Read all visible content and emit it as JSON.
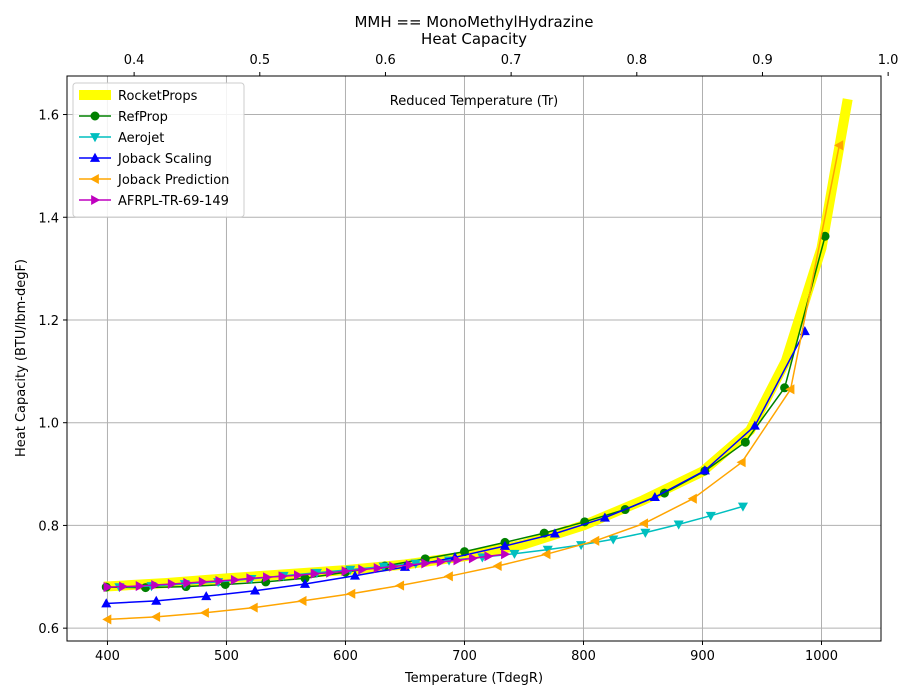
{
  "chart_data": {
    "type": "line",
    "title": "MMH == MonoMethylHydrazine",
    "subtitle": "Heat Capacity",
    "xlabel": "Temperature (TdegR)",
    "ylabel": "Heat Capacity (BTU/lbm-degF)",
    "x2label": "Reduced Temperature (Tr)",
    "xlim": [
      366,
      1050
    ],
    "ylim": [
      0.575,
      1.675
    ],
    "xticks": [
      400,
      500,
      600,
      700,
      800,
      900,
      1000
    ],
    "yticks": [
      0.6,
      0.8,
      1.0,
      1.2,
      1.4,
      1.6
    ],
    "x2ticks": [
      0.4,
      0.5,
      0.6,
      0.7,
      0.8,
      0.9,
      1.0
    ],
    "x2_tr_to_x": 1056.0,
    "grid": true,
    "legend_position": "top-left",
    "series": [
      {
        "name": "RocketProps",
        "color": "#ffff00",
        "marker": "none",
        "style": "thick",
        "x": [
          397,
          450,
          500,
          550,
          600,
          650,
          700,
          750,
          800,
          850,
          900,
          940,
          970,
          1000,
          1022
        ],
        "y": [
          0.681,
          0.688,
          0.697,
          0.705,
          0.713,
          0.724,
          0.74,
          0.763,
          0.8,
          0.849,
          0.905,
          0.985,
          1.12,
          1.34,
          1.63
        ]
      },
      {
        "name": "RefProp",
        "color": "#008000",
        "marker": "circle",
        "x": [
          399,
          432,
          466,
          499,
          533,
          566,
          600,
          633,
          667,
          700,
          734,
          767,
          801,
          835,
          868,
          902,
          936,
          969,
          1003
        ],
        "y": [
          0.68,
          0.679,
          0.681,
          0.685,
          0.69,
          0.697,
          0.709,
          0.721,
          0.735,
          0.749,
          0.767,
          0.785,
          0.807,
          0.831,
          0.863,
          0.906,
          0.962,
          1.068,
          1.363
        ]
      },
      {
        "name": "Aerojet",
        "color": "#00bfbf",
        "marker": "triangle-down",
        "x": [
          410,
          437,
          465,
          493,
          521,
          548,
          576,
          604,
          632,
          659,
          687,
          715,
          742,
          770,
          798,
          825,
          852,
          880,
          907,
          934
        ],
        "y": [
          0.68,
          0.682,
          0.686,
          0.69,
          0.696,
          0.702,
          0.708,
          0.714,
          0.72,
          0.726,
          0.732,
          0.738,
          0.745,
          0.753,
          0.762,
          0.773,
          0.786,
          0.802,
          0.819,
          0.837
        ]
      },
      {
        "name": "Joback Scaling",
        "color": "#0000ff",
        "marker": "triangle-up",
        "x": [
          399,
          441,
          483,
          524,
          566,
          608,
          650,
          692,
          734,
          776,
          818,
          860,
          902,
          944,
          986
        ],
        "y": [
          0.648,
          0.653,
          0.662,
          0.673,
          0.686,
          0.702,
          0.719,
          0.738,
          0.76,
          0.784,
          0.815,
          0.855,
          0.907,
          0.994,
          1.178
        ]
      },
      {
        "name": "Joback Prediction",
        "color": "#ffa500",
        "marker": "triangle-left",
        "x": [
          400,
          441,
          482,
          523,
          564,
          605,
          646,
          687,
          728,
          769,
          810,
          851,
          892,
          933,
          974,
          1015
        ],
        "y": [
          0.617,
          0.622,
          0.63,
          0.64,
          0.653,
          0.667,
          0.683,
          0.701,
          0.721,
          0.744,
          0.77,
          0.804,
          0.852,
          0.923,
          1.065,
          1.54
        ]
      },
      {
        "name": "AFRPL-TR-69-149",
        "color": "#bf00bf",
        "marker": "triangle-right",
        "x": [
          400,
          413,
          427,
          440,
          454,
          467,
          480,
          494,
          507,
          520,
          534,
          547,
          560,
          574,
          587,
          600,
          614,
          627,
          640,
          654,
          667,
          680,
          694,
          707,
          720,
          734
        ],
        "y": [
          0.68,
          0.681,
          0.682,
          0.684,
          0.686,
          0.688,
          0.69,
          0.692,
          0.694,
          0.697,
          0.699,
          0.701,
          0.703,
          0.706,
          0.708,
          0.711,
          0.714,
          0.717,
          0.72,
          0.723,
          0.726,
          0.729,
          0.732,
          0.736,
          0.74,
          0.744
        ]
      }
    ]
  }
}
